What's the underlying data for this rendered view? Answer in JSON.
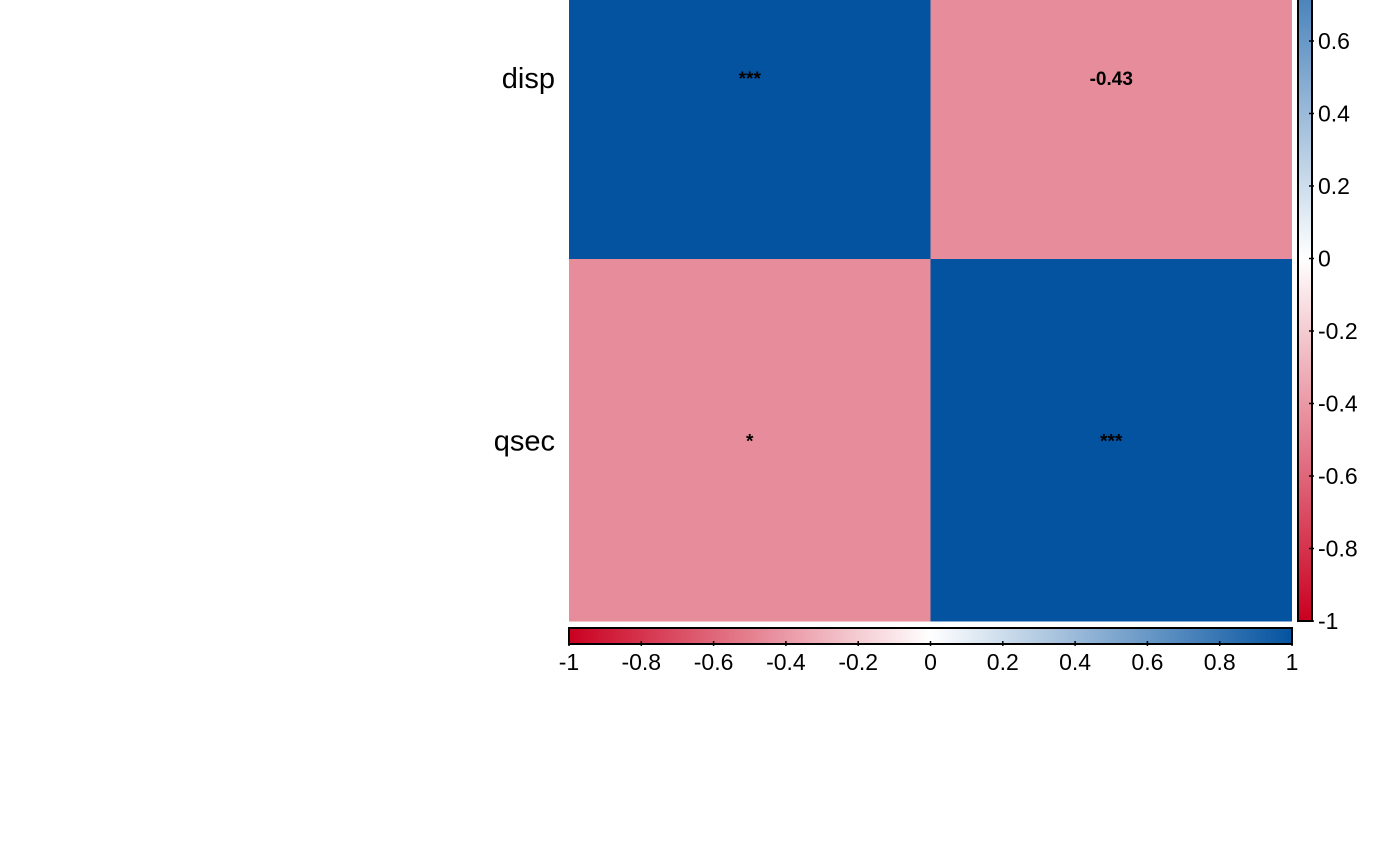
{
  "chart_data": {
    "type": "heatmap",
    "title": "",
    "rows": [
      "disp",
      "qsec"
    ],
    "matrix": [
      [
        1.0,
        -0.43
      ],
      [
        -0.43,
        1.0
      ]
    ],
    "cell_labels": [
      [
        "***",
        "-0.43"
      ],
      [
        "*",
        "***"
      ]
    ],
    "colorscale": {
      "range": [
        -1,
        1
      ],
      "low_color": "#CA0020",
      "mid_color": "#FFFFFF",
      "high_color": "#0453A0"
    },
    "colorbars": [
      {
        "orientation": "vertical",
        "placement": "right",
        "ticks": [
          -1,
          -0.8,
          -0.6,
          -0.4,
          -0.2,
          0,
          0.2,
          0.4,
          0.6
        ],
        "tick_labels": [
          "-1",
          "-0.8",
          "-0.6",
          "-0.4",
          "-0.2",
          "0",
          "0.2",
          "0.4",
          "0.6"
        ]
      },
      {
        "orientation": "horizontal",
        "placement": "bottom",
        "ticks": [
          -1,
          -0.8,
          -0.6,
          -0.4,
          -0.2,
          0,
          0.2,
          0.4,
          0.6,
          0.8,
          1
        ],
        "tick_labels": [
          "-1",
          "-0.8",
          "-0.6",
          "-0.4",
          "-0.2",
          "0",
          "0.2",
          "0.4",
          "0.6",
          "0.8",
          "1"
        ]
      }
    ]
  }
}
